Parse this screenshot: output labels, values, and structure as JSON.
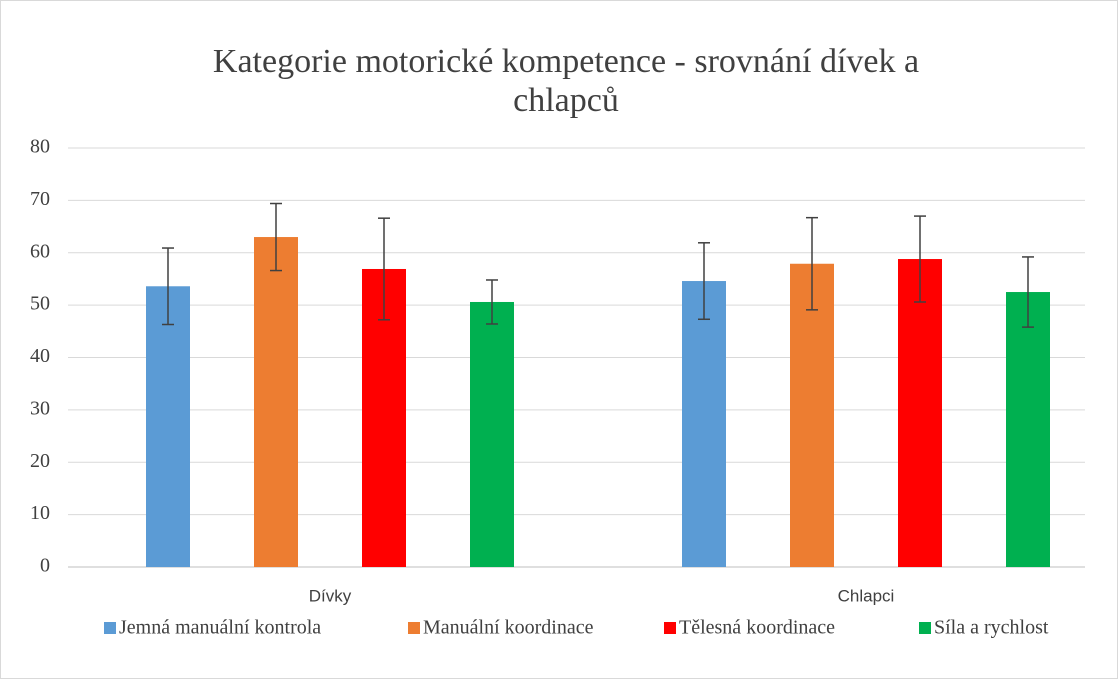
{
  "chart_data": {
    "type": "bar",
    "title": "Kategorie motorické kompetence - srovnání dívek a chlapců",
    "categories": [
      "Dívky",
      "Chlapci"
    ],
    "series": [
      {
        "name": "Jemná manuální kontrola",
        "color": "#5b9bd5",
        "values": [
          53.6,
          54.6
        ],
        "errors": [
          7.3,
          7.3
        ]
      },
      {
        "name": "Manuální koordinace",
        "color": "#ed7d31",
        "values": [
          63.0,
          57.9
        ],
        "errors": [
          6.4,
          8.8
        ]
      },
      {
        "name": "Tělesná koordinace",
        "color": "#ff0000",
        "values": [
          56.9,
          58.8
        ],
        "errors": [
          9.7,
          8.2
        ]
      },
      {
        "name": "Síla a rychlost",
        "color": "#00b050",
        "values": [
          50.6,
          52.5
        ],
        "errors": [
          4.2,
          6.7
        ]
      }
    ],
    "ylim": [
      0,
      80
    ],
    "yticks": [
      0,
      10,
      20,
      30,
      40,
      50,
      60,
      70,
      80
    ],
    "grid": true,
    "legend": "bottom"
  }
}
